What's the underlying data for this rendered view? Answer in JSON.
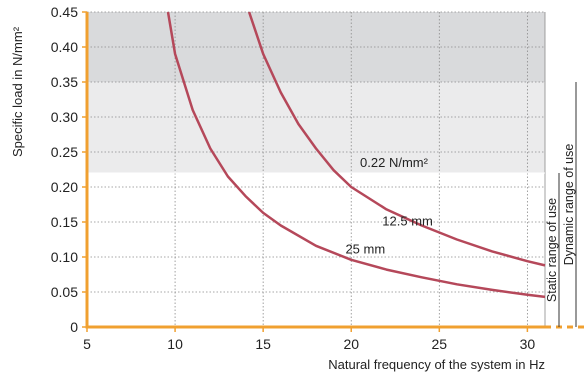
{
  "chart_data": {
    "type": "line",
    "xlabel": "Natural frequency of the system in Hz",
    "ylabel": "Specific load in N/mm²",
    "xlim": [
      5,
      31
    ],
    "ylim": [
      0,
      0.45
    ],
    "x_ticks": [
      "5",
      "10",
      "15",
      "20",
      "25",
      "30"
    ],
    "y_ticks": [
      "0",
      "0.05",
      "0.10",
      "0.15",
      "0.20",
      "0.25",
      "0.30",
      "0.35",
      "0.40",
      "0.45"
    ],
    "grid": true,
    "bands": [
      {
        "y_from": 0.35,
        "y_to": 0.45,
        "color": "#d9dadc"
      },
      {
        "y_from": 0.22,
        "y_to": 0.35,
        "color": "#ebebec"
      }
    ],
    "threshold": {
      "value": 0.22,
      "label": "0.22 N/mm²"
    },
    "series": [
      {
        "name": "12.5 mm",
        "color": "#b5485a",
        "x": [
          14.2,
          15,
          16,
          17,
          18,
          19,
          20,
          22,
          24,
          26,
          28,
          30,
          31
        ],
        "y": [
          0.45,
          0.39,
          0.335,
          0.29,
          0.255,
          0.224,
          0.2,
          0.168,
          0.145,
          0.125,
          0.108,
          0.094,
          0.088
        ]
      },
      {
        "name": "25 mm",
        "color": "#b5485a",
        "x": [
          9.6,
          10,
          11,
          12,
          13,
          14,
          15,
          16,
          18,
          20,
          22,
          24,
          26,
          28,
          30,
          31
        ],
        "y": [
          0.45,
          0.39,
          0.31,
          0.255,
          0.215,
          0.187,
          0.163,
          0.145,
          0.116,
          0.096,
          0.082,
          0.071,
          0.061,
          0.053,
          0.046,
          0.043
        ]
      }
    ],
    "ranges": {
      "static": {
        "label": "Static range of use",
        "y_from": 0,
        "y_to": 0.22
      },
      "dynamic": {
        "label": "Dynamic range of use",
        "y_from": 0,
        "y_to": 0.35
      }
    },
    "colors": {
      "axis": "#f0a030",
      "grid": "#8a8a8a",
      "curve": "#b5485a"
    }
  }
}
